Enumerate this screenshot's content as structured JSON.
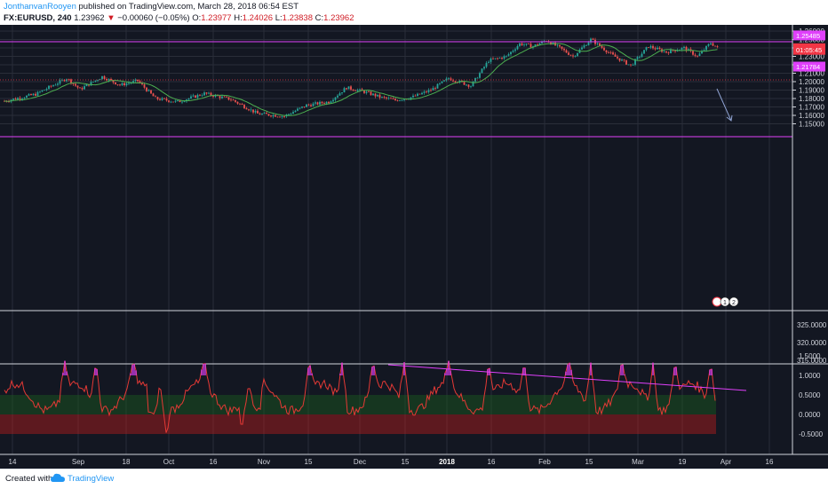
{
  "header": {
    "author": "JonthanvanRooyen",
    "published_text": "published on TradingView.com, March 28, 2018 06:54 EST",
    "symbol": "FX:EURUSD, 240",
    "last_price": "1.23962",
    "change_arrow": "▼",
    "change": "−0.00060 (−0.05%)",
    "o_label": "O:",
    "o_value": "1.23977",
    "h_label": "H:",
    "h_value": "1.24026",
    "l_label": "L:",
    "l_value": "1.23838",
    "c_label": "C:",
    "c_value": "1.23962"
  },
  "footer": {
    "created_with": "Created with",
    "brand": "TradingView"
  },
  "price_axis": {
    "labels": [
      "1.26000",
      "1.25000",
      "1.24000",
      "1.23000",
      "1.22000",
      "1.21000",
      "1.20000",
      "1.19000",
      "1.18000",
      "1.17000",
      "1.16000",
      "1.15000"
    ],
    "values": [
      1.26,
      1.25,
      1.24,
      1.23,
      1.22,
      1.21,
      1.2,
      1.19,
      1.18,
      1.17,
      1.16,
      1.15
    ],
    "tags": [
      {
        "text": "1.25485",
        "value": 1.25485,
        "color": "#e040fb"
      },
      {
        "text": "1.23962",
        "value": 1.23962,
        "color": "#f23645"
      },
      {
        "text": "01:05:45",
        "value": 1.2377,
        "color": "#f23645"
      },
      {
        "text": "1.21784",
        "value": 1.21784,
        "color": "#e040fb"
      }
    ]
  },
  "mid_axis": {
    "labels": [
      "325.0000",
      "320.0000",
      "315.0000"
    ]
  },
  "osc_axis": {
    "labels": [
      "1.5000",
      "1.0000",
      "0.5000",
      "0.0000",
      "-0.5000"
    ],
    "values": [
      1.5,
      1.0,
      0.5,
      0.0,
      -0.5
    ]
  },
  "time_axis": {
    "labels": [
      "14",
      "Sep",
      "18",
      "Oct",
      "16",
      "Nov",
      "15",
      "Dec",
      "15",
      "2018",
      "16",
      "Feb",
      "15",
      "Mar",
      "19",
      "Apr",
      "16"
    ],
    "bold": [
      false,
      false,
      false,
      false,
      false,
      false,
      false,
      false,
      false,
      true,
      false,
      false,
      false,
      false,
      false,
      false,
      false
    ]
  },
  "event_badges": [
    "2",
    "1",
    "2"
  ],
  "colors": {
    "background": "#131722",
    "grid": "#2a2e39",
    "up": "#26a69a",
    "down": "#ef5350",
    "ma": "#4caf50",
    "hline": "#e040fb",
    "current": "#f23645",
    "osc": "#e53935",
    "zone_green": "#1b5e20",
    "zone_red": "#b71c1c"
  }
}
